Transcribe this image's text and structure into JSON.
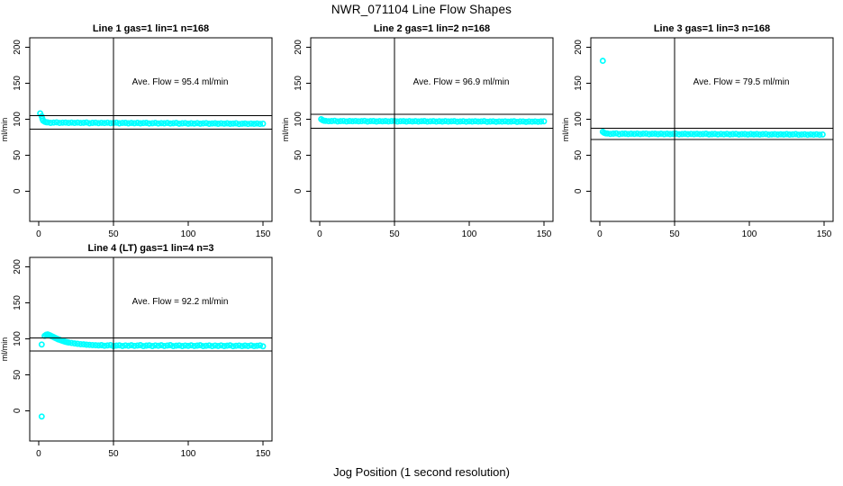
{
  "page_title": "NWR_071104  Line Flow Shapes",
  "x_axis_label": "Jog Position (1 second resolution)",
  "colors": {
    "point": "#00ffff",
    "axis": "#000000",
    "background": "#ffffff"
  },
  "chart_data": [
    {
      "type": "scatter",
      "title": "Line 1 gas=1 lin=1 n=168",
      "annotation": "Ave. Flow =  95.4  ml/min",
      "ave_flow_ml_min": 95.4,
      "ylabel": "ml/min",
      "xticks": [
        0,
        50,
        100,
        150
      ],
      "yticks": [
        0,
        50,
        100,
        150,
        200
      ],
      "xlim": [
        -6,
        156
      ],
      "ylim": [
        -42,
        213
      ],
      "vline_x": 50,
      "hlines": [
        104.9,
        85.9
      ],
      "grid": false,
      "points": [
        [
          1,
          108
        ],
        [
          2,
          104
        ],
        [
          2.5,
          100.5
        ],
        [
          3,
          98
        ],
        [
          4,
          96.5
        ],
        [
          5,
          95.8
        ],
        [
          6,
          95.6
        ],
        [
          8,
          94.9
        ],
        [
          10,
          95.2
        ],
        [
          12,
          95.6
        ],
        [
          14,
          94.7
        ],
        [
          16,
          95.1
        ],
        [
          18,
          95.3
        ],
        [
          20,
          94.7
        ],
        [
          22,
          95.2
        ],
        [
          24,
          94.8
        ],
        [
          26,
          95.3
        ],
        [
          28,
          94.7
        ],
        [
          30,
          95.0
        ],
        [
          32,
          95.4
        ],
        [
          34,
          94.4
        ],
        [
          36,
          94.9
        ],
        [
          38,
          95.1
        ],
        [
          40,
          94.5
        ],
        [
          42,
          95.0
        ],
        [
          44,
          94.6
        ],
        [
          46,
          95.1
        ],
        [
          48,
          94.5
        ],
        [
          50,
          94.8
        ],
        [
          52,
          95.1
        ],
        [
          54,
          94.2
        ],
        [
          56,
          94.7
        ],
        [
          58,
          94.9
        ],
        [
          60,
          94.2
        ],
        [
          62,
          94.8
        ],
        [
          64,
          94.4
        ],
        [
          66,
          94.9
        ],
        [
          68,
          94.2
        ],
        [
          70,
          94.6
        ],
        [
          72,
          94.9
        ],
        [
          74,
          94.0
        ],
        [
          76,
          94.4
        ],
        [
          78,
          94.7
        ],
        [
          80,
          94.0
        ],
        [
          82,
          94.5
        ],
        [
          84,
          94.2
        ],
        [
          86,
          94.7
        ],
        [
          88,
          94.0
        ],
        [
          90,
          94.4
        ],
        [
          92,
          94.7
        ],
        [
          94,
          93.8
        ],
        [
          96,
          94.2
        ],
        [
          98,
          94.5
        ],
        [
          100,
          93.8
        ],
        [
          102,
          94.3
        ],
        [
          104,
          93.9
        ],
        [
          106,
          94.5
        ],
        [
          108,
          93.8
        ],
        [
          110,
          94.1
        ],
        [
          112,
          94.5
        ],
        [
          114,
          93.6
        ],
        [
          116,
          94.0
        ],
        [
          118,
          94.2
        ],
        [
          120,
          93.6
        ],
        [
          122,
          94.1
        ],
        [
          124,
          93.7
        ],
        [
          126,
          94.2
        ],
        [
          128,
          93.6
        ],
        [
          130,
          93.9
        ],
        [
          132,
          94.3
        ],
        [
          134,
          93.3
        ],
        [
          136,
          93.8
        ],
        [
          138,
          94.0
        ],
        [
          140,
          93.4
        ],
        [
          142,
          93.9
        ],
        [
          144,
          93.5
        ],
        [
          146,
          94.0
        ],
        [
          148,
          93.4
        ],
        [
          150,
          93.7
        ]
      ]
    },
    {
      "type": "scatter",
      "title": "Line 2 gas=1 lin=2 n=168",
      "annotation": "Ave. Flow =  96.9  ml/min",
      "ave_flow_ml_min": 96.9,
      "ylabel": "ml/min",
      "xticks": [
        0,
        50,
        100,
        150
      ],
      "yticks": [
        0,
        50,
        100,
        150,
        200
      ],
      "xlim": [
        -6,
        156
      ],
      "ylim": [
        -42,
        213
      ],
      "vline_x": 50,
      "hlines": [
        106.6,
        87.2
      ],
      "grid": false,
      "points": [
        [
          1,
          100
        ],
        [
          2,
          98.5
        ],
        [
          3,
          97.8
        ],
        [
          4,
          97.6
        ],
        [
          6,
          97.1
        ],
        [
          8,
          97.4
        ],
        [
          10,
          97.7
        ],
        [
          12,
          96.9
        ],
        [
          14,
          97.3
        ],
        [
          16,
          97.5
        ],
        [
          18,
          96.9
        ],
        [
          20,
          97.4
        ],
        [
          22,
          97.1
        ],
        [
          24,
          97.5
        ],
        [
          26,
          97.0
        ],
        [
          28,
          97.3
        ],
        [
          30,
          97.6
        ],
        [
          32,
          96.8
        ],
        [
          34,
          97.2
        ],
        [
          36,
          97.4
        ],
        [
          38,
          96.8
        ],
        [
          40,
          97.3
        ],
        [
          42,
          97.0
        ],
        [
          44,
          97.4
        ],
        [
          46,
          96.9
        ],
        [
          48,
          97.2
        ],
        [
          50,
          97.5
        ],
        [
          52,
          96.7
        ],
        [
          54,
          97.1
        ],
        [
          56,
          97.3
        ],
        [
          58,
          96.7
        ],
        [
          60,
          97.2
        ],
        [
          62,
          96.9
        ],
        [
          64,
          97.3
        ],
        [
          66,
          96.8
        ],
        [
          68,
          97.1
        ],
        [
          70,
          97.4
        ],
        [
          72,
          96.6
        ],
        [
          74,
          97.0
        ],
        [
          76,
          97.2
        ],
        [
          78,
          96.6
        ],
        [
          80,
          97.1
        ],
        [
          82,
          96.8
        ],
        [
          84,
          97.2
        ],
        [
          86,
          96.7
        ],
        [
          88,
          97.0
        ],
        [
          90,
          97.3
        ],
        [
          92,
          96.5
        ],
        [
          94,
          96.9
        ],
        [
          96,
          97.1
        ],
        [
          98,
          96.5
        ],
        [
          100,
          97.0
        ],
        [
          102,
          96.7
        ],
        [
          104,
          97.1
        ],
        [
          106,
          96.6
        ],
        [
          108,
          96.9
        ],
        [
          110,
          97.2
        ],
        [
          112,
          96.4
        ],
        [
          114,
          96.8
        ],
        [
          116,
          97.0
        ],
        [
          118,
          96.4
        ],
        [
          120,
          96.9
        ],
        [
          122,
          96.6
        ],
        [
          124,
          97.0
        ],
        [
          126,
          96.5
        ],
        [
          128,
          96.8
        ],
        [
          130,
          97.1
        ],
        [
          132,
          96.3
        ],
        [
          134,
          96.7
        ],
        [
          136,
          96.9
        ],
        [
          138,
          96.3
        ],
        [
          140,
          96.8
        ],
        [
          142,
          96.5
        ],
        [
          144,
          96.9
        ],
        [
          146,
          96.4
        ],
        [
          148,
          96.7
        ],
        [
          150,
          97.0
        ]
      ]
    },
    {
      "type": "scatter",
      "title": "Line 3 gas=1 lin=3 n=168",
      "annotation": "Ave. Flow =  79.5  ml/min",
      "ave_flow_ml_min": 79.5,
      "ylabel": "ml/min",
      "xticks": [
        0,
        50,
        100,
        150
      ],
      "yticks": [
        0,
        50,
        100,
        150,
        200
      ],
      "xlim": [
        -6,
        156
      ],
      "ylim": [
        -42,
        213
      ],
      "vline_x": 50,
      "hlines": [
        87.5,
        71.6
      ],
      "grid": false,
      "points": [
        [
          2,
          181
        ],
        [
          2,
          82.5
        ],
        [
          3,
          81
        ],
        [
          4,
          80.2
        ],
        [
          5,
          80.1
        ],
        [
          7,
          79.5
        ],
        [
          9,
          79.9
        ],
        [
          11,
          80.2
        ],
        [
          13,
          79.3
        ],
        [
          15,
          79.7
        ],
        [
          17,
          79.9
        ],
        [
          19,
          79.4
        ],
        [
          21,
          79.8
        ],
        [
          23,
          79.5
        ],
        [
          25,
          80.0
        ],
        [
          27,
          79.4
        ],
        [
          29,
          79.7
        ],
        [
          31,
          80.0
        ],
        [
          33,
          79.2
        ],
        [
          35,
          79.6
        ],
        [
          37,
          79.8
        ],
        [
          39,
          79.2
        ],
        [
          41,
          79.7
        ],
        [
          43,
          79.3
        ],
        [
          45,
          79.8
        ],
        [
          47,
          79.2
        ],
        [
          49,
          79.5
        ],
        [
          51,
          79.8
        ],
        [
          53,
          79.0
        ],
        [
          55,
          79.4
        ],
        [
          57,
          79.6
        ],
        [
          59,
          79.1
        ],
        [
          61,
          79.5
        ],
        [
          63,
          79.2
        ],
        [
          65,
          79.6
        ],
        [
          67,
          79.1
        ],
        [
          69,
          79.4
        ],
        [
          71,
          79.7
        ],
        [
          73,
          78.9
        ],
        [
          75,
          79.2
        ],
        [
          77,
          79.5
        ],
        [
          79,
          78.9
        ],
        [
          81,
          79.4
        ],
        [
          83,
          79.0
        ],
        [
          85,
          79.5
        ],
        [
          87,
          78.9
        ],
        [
          89,
          79.2
        ],
        [
          91,
          79.5
        ],
        [
          93,
          78.7
        ],
        [
          95,
          79.1
        ],
        [
          97,
          79.3
        ],
        [
          99,
          78.7
        ],
        [
          101,
          79.2
        ],
        [
          103,
          78.9
        ],
        [
          105,
          79.3
        ],
        [
          107,
          78.7
        ],
        [
          109,
          79.1
        ],
        [
          111,
          79.4
        ],
        [
          113,
          78.5
        ],
        [
          115,
          78.9
        ],
        [
          117,
          79.1
        ],
        [
          119,
          78.6
        ],
        [
          121,
          79.0
        ],
        [
          123,
          78.7
        ],
        [
          125,
          79.2
        ],
        [
          127,
          78.6
        ],
        [
          129,
          78.9
        ],
        [
          131,
          79.2
        ],
        [
          133,
          78.4
        ],
        [
          135,
          78.8
        ],
        [
          137,
          79.0
        ],
        [
          139,
          78.4
        ],
        [
          141,
          78.9
        ],
        [
          143,
          78.5
        ],
        [
          145,
          79.0
        ],
        [
          147,
          78.4
        ],
        [
          149,
          78.7
        ]
      ]
    },
    {
      "type": "scatter",
      "title": "Line 4 (LT) gas=1 lin=4 n=3",
      "annotation": "Ave. Flow =  92.2  ml/min",
      "ave_flow_ml_min": 92.2,
      "ylabel": "ml/min",
      "xticks": [
        0,
        50,
        100,
        150
      ],
      "yticks": [
        0,
        50,
        100,
        150,
        200
      ],
      "xlim": [
        -6,
        156
      ],
      "ylim": [
        -42,
        213
      ],
      "vline_x": 50,
      "hlines": [
        101.4,
        83.0
      ],
      "grid": false,
      "points": [
        [
          2,
          -8
        ],
        [
          2,
          92
        ],
        [
          4,
          104
        ],
        [
          5,
          105.5
        ],
        [
          6,
          106
        ],
        [
          7,
          105.2
        ],
        [
          8,
          104.2
        ],
        [
          9,
          103.2
        ],
        [
          10,
          102.2
        ],
        [
          11,
          101.2
        ],
        [
          12,
          100.2
        ],
        [
          13,
          99.3
        ],
        [
          14,
          98.5
        ],
        [
          15,
          97.8
        ],
        [
          16,
          97.1
        ],
        [
          17,
          96.4
        ],
        [
          18,
          95.8
        ],
        [
          19,
          95.2
        ],
        [
          20,
          94.8
        ],
        [
          22,
          94.1
        ],
        [
          24,
          93.5
        ],
        [
          26,
          93.0
        ],
        [
          28,
          92.5
        ],
        [
          30,
          92.2
        ],
        [
          32,
          91.8
        ],
        [
          34,
          91.5
        ],
        [
          36,
          91.2
        ],
        [
          38,
          91.0
        ],
        [
          40,
          90.8
        ],
        [
          42,
          91.1
        ],
        [
          44,
          90.2
        ],
        [
          46,
          90.7
        ],
        [
          48,
          91.2
        ],
        [
          50,
          89.9
        ],
        [
          52,
          90.6
        ],
        [
          54,
          90.9
        ],
        [
          56,
          90.0
        ],
        [
          58,
          90.8
        ],
        [
          60,
          90.3
        ],
        [
          62,
          91.0
        ],
        [
          64,
          90.1
        ],
        [
          66,
          90.6
        ],
        [
          68,
          91.1
        ],
        [
          70,
          89.8
        ],
        [
          72,
          90.5
        ],
        [
          74,
          90.9
        ],
        [
          76,
          89.9
        ],
        [
          78,
          90.7
        ],
        [
          80,
          90.2
        ],
        [
          82,
          91.0
        ],
        [
          84,
          90.0
        ],
        [
          86,
          90.6
        ],
        [
          88,
          91.1
        ],
        [
          90,
          89.8
        ],
        [
          92,
          90.4
        ],
        [
          94,
          90.8
        ],
        [
          96,
          89.9
        ],
        [
          98,
          90.6
        ],
        [
          100,
          90.1
        ],
        [
          102,
          90.9
        ],
        [
          104,
          90.0
        ],
        [
          106,
          90.5
        ],
        [
          108,
          91.0
        ],
        [
          110,
          89.7
        ],
        [
          112,
          90.3
        ],
        [
          114,
          90.7
        ],
        [
          116,
          89.8
        ],
        [
          118,
          90.6
        ],
        [
          120,
          90.0
        ],
        [
          122,
          90.8
        ],
        [
          124,
          89.9
        ],
        [
          126,
          90.4
        ],
        [
          128,
          90.9
        ],
        [
          130,
          89.6
        ],
        [
          132,
          90.2
        ],
        [
          134,
          90.6
        ],
        [
          136,
          89.7
        ],
        [
          138,
          90.5
        ],
        [
          140,
          90.0
        ],
        [
          142,
          90.7
        ],
        [
          144,
          89.8
        ],
        [
          146,
          90.3
        ],
        [
          148,
          90.8
        ],
        [
          150,
          89.5
        ]
      ]
    }
  ]
}
